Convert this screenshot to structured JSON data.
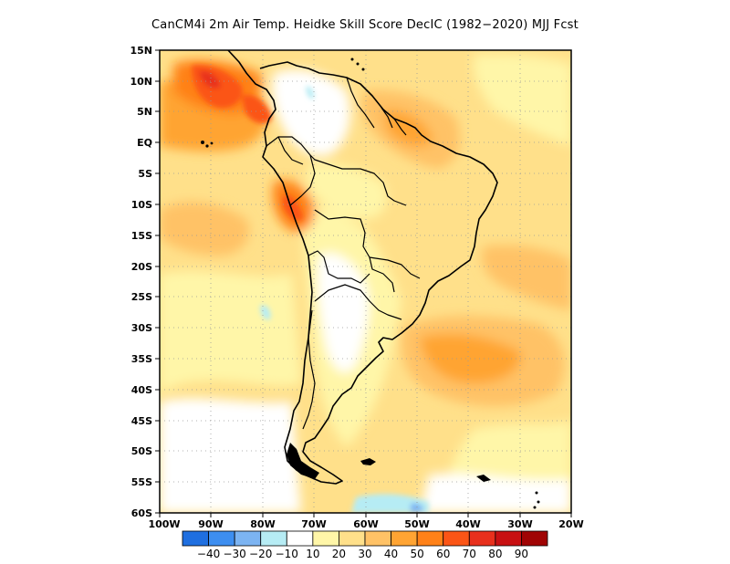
{
  "title": "CanCM4i  2m Air Temp. Heidke Skill Score DecIC (1982−2020) MJJ Fcst",
  "map": {
    "region": "South America",
    "lon_range": [
      -100,
      -20
    ],
    "lat_range": [
      -60,
      15
    ],
    "grid": true,
    "lat_labels": [
      "15N",
      "10N",
      "5N",
      "EQ",
      "5S",
      "10S",
      "15S",
      "20S",
      "25S",
      "30S",
      "35S",
      "40S",
      "45S",
      "50S",
      "55S",
      "60S"
    ],
    "lon_labels": [
      "100W",
      "90W",
      "80W",
      "70W",
      "60W",
      "50W",
      "40W",
      "30W",
      "20W"
    ]
  },
  "colorbar": {
    "colors": [
      "#1f6fe0",
      "#3d8ef0",
      "#7cb4f2",
      "#b6ecf4",
      "#ffffff",
      "#fff6a8",
      "#ffe08a",
      "#ffc266",
      "#ffa433",
      "#ff8118",
      "#fb5516",
      "#e8301c",
      "#c81012",
      "#a00404"
    ],
    "labels": [
      "−40",
      "−30",
      "−20",
      "−10",
      "10",
      "20",
      "30",
      "40",
      "50",
      "60",
      "70",
      "80",
      "90"
    ]
  }
}
